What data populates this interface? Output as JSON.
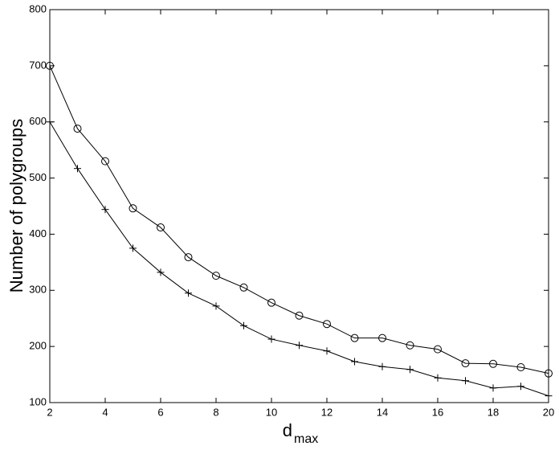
{
  "chart_data": {
    "type": "line",
    "x_label": "d",
    "x_label_subscript": "max",
    "y_label": "Number of polygroups",
    "x": [
      2,
      3,
      4,
      5,
      6,
      7,
      8,
      9,
      10,
      11,
      12,
      13,
      14,
      15,
      16,
      17,
      18,
      19,
      20
    ],
    "series": [
      {
        "marker": "o",
        "color": "#000000",
        "values": [
          700,
          588,
          530,
          446,
          412,
          359,
          326,
          305,
          278,
          255,
          240,
          215,
          215,
          202,
          195,
          170,
          169,
          163,
          152
        ]
      },
      {
        "marker": "+",
        "color": "#000000",
        "values": [
          600,
          517,
          444,
          375,
          332,
          295,
          272,
          237,
          213,
          202,
          192,
          173,
          164,
          159,
          144,
          139,
          126,
          129,
          112
        ]
      }
    ],
    "xlim": [
      2,
      20
    ],
    "xticks": [
      2,
      4,
      6,
      8,
      10,
      12,
      14,
      16,
      18,
      20
    ],
    "ylim": [
      100,
      800
    ],
    "yticks": [
      100,
      200,
      300,
      400,
      500,
      600,
      700,
      800
    ],
    "grid": false
  }
}
